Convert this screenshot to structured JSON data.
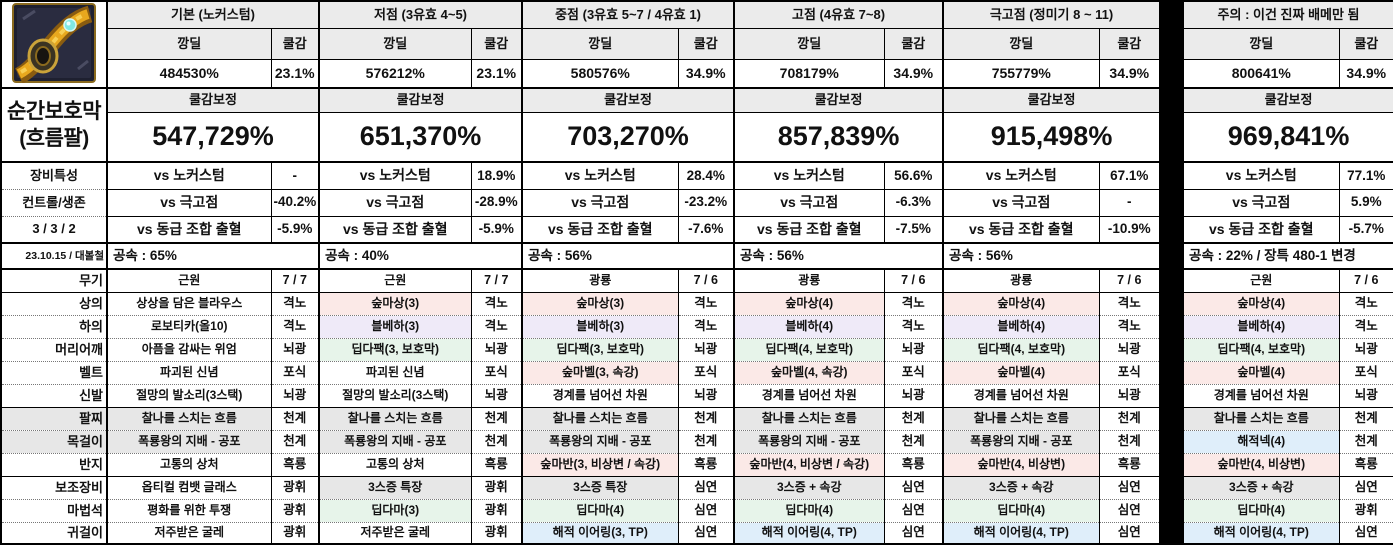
{
  "labels": {
    "damage": "깡딜",
    "cooldown": "쿨감",
    "corrected": "쿨감보정"
  },
  "left": {
    "icon": "gold-bracelet-item-icon",
    "title1": "순간보호막",
    "title2": "(흐름팔)",
    "stat_labels": [
      "장비특성",
      "컨트롤/생존",
      "3 / 3 / 2",
      "23.10.15 / 대볼철"
    ],
    "equipment": [
      {
        "label": "무기"
      },
      {
        "label": "상의"
      },
      {
        "label": "하의"
      },
      {
        "label": "머리어깨"
      },
      {
        "label": "벨트"
      },
      {
        "label": "신발"
      },
      {
        "label": "팔찌",
        "bg": "gray"
      },
      {
        "label": "목걸이",
        "bg": "gray"
      },
      {
        "label": "반지"
      },
      {
        "label": "보조장비"
      },
      {
        "label": "마법석"
      },
      {
        "label": "귀걸이"
      }
    ]
  },
  "colors": {
    "gray": "#e7e7e7",
    "pink": "#fbe9e7",
    "purple": "#efeaf8",
    "green": "#e7f4ea",
    "blue": "#dfeefa",
    "header": "#ebebeb",
    "separator": "#000000"
  },
  "groups": [
    {
      "title": "기본 (노커스텀)",
      "damage": "484530%",
      "cooldown": "23.1%",
      "corrected": "547,729%",
      "vs_rows": [
        {
          "label": "vs 노커스텀",
          "value": "-"
        },
        {
          "label": "vs 극고점",
          "value": "-40.2%"
        },
        {
          "label": "vs 동급 조합 출혈",
          "value": "-5.9%"
        }
      ],
      "speed": "공속 : 65%",
      "equipment": [
        {
          "item": "근원",
          "type": "7 / 7"
        },
        {
          "item": "상상을 담은 블라우스",
          "type": "격노"
        },
        {
          "item": "로보티카(올10)",
          "type": "격노"
        },
        {
          "item": "아픔을 감싸는 위엄",
          "type": "뇌광"
        },
        {
          "item": "파괴된 신념",
          "type": "포식"
        },
        {
          "item": "절망의 발소리(3스택)",
          "type": "뇌광"
        },
        {
          "item": "찰나를 스치는 흐름",
          "type": "천계",
          "bg": "gray"
        },
        {
          "item": "폭룡왕의 지배 - 공포",
          "type": "천계",
          "bg": "gray"
        },
        {
          "item": "고통의 상처",
          "type": "흑룡"
        },
        {
          "item": "옵티컬 컴뱃 글래스",
          "type": "광휘"
        },
        {
          "item": "평화를 위한 투쟁",
          "type": "광휘"
        },
        {
          "item": "저주받은 굴레",
          "type": "광휘"
        }
      ]
    },
    {
      "title": "저점 (3유효 4~5)",
      "damage": "576212%",
      "cooldown": "23.1%",
      "corrected": "651,370%",
      "vs_rows": [
        {
          "label": "vs 노커스텀",
          "value": "18.9%"
        },
        {
          "label": "vs 극고점",
          "value": "-28.9%"
        },
        {
          "label": "vs 동급 조합 출혈",
          "value": "-5.9%"
        }
      ],
      "speed": "공속 : 40%",
      "equipment": [
        {
          "item": "근원",
          "type": "7 / 7"
        },
        {
          "item": "숲마상(3)",
          "type": "격노",
          "bg": "pink"
        },
        {
          "item": "블베하(3)",
          "type": "격노",
          "bg": "purple"
        },
        {
          "item": "딥다팩(3, 보호막)",
          "type": "뇌광",
          "bg": "green"
        },
        {
          "item": "파괴된 신념",
          "type": "포식"
        },
        {
          "item": "절망의 발소리(3스택)",
          "type": "뇌광"
        },
        {
          "item": "찰나를 스치는 흐름",
          "type": "천계",
          "bg": "gray"
        },
        {
          "item": "폭룡왕의 지배 - 공포",
          "type": "천계",
          "bg": "gray"
        },
        {
          "item": "고통의 상처",
          "type": "흑룡"
        },
        {
          "item": "3스증 특장",
          "type": "광휘",
          "bg": "gray"
        },
        {
          "item": "딥다마(3)",
          "type": "광휘",
          "bg": "green"
        },
        {
          "item": "저주받은 굴레",
          "type": "광휘"
        }
      ]
    },
    {
      "title": "중점 (3유효 5~7 / 4유효 1)",
      "damage": "580576%",
      "cooldown": "34.9%",
      "corrected": "703,270%",
      "vs_rows": [
        {
          "label": "vs 노커스텀",
          "value": "28.4%"
        },
        {
          "label": "vs 극고점",
          "value": "-23.2%"
        },
        {
          "label": "vs 동급 조합 출혈",
          "value": "-7.6%"
        }
      ],
      "speed": "공속 : 56%",
      "equipment": [
        {
          "item": "광룡",
          "type": "7 / 6"
        },
        {
          "item": "숲마상(3)",
          "type": "격노",
          "bg": "pink"
        },
        {
          "item": "블베하(3)",
          "type": "격노",
          "bg": "purple"
        },
        {
          "item": "딥다팩(3, 보호막)",
          "type": "뇌광",
          "bg": "green"
        },
        {
          "item": "숲마벨(3, 속강)",
          "type": "포식",
          "bg": "pink"
        },
        {
          "item": "경계를 넘어선 차원",
          "type": "뇌광"
        },
        {
          "item": "찰나를 스치는 흐름",
          "type": "천계",
          "bg": "gray"
        },
        {
          "item": "폭룡왕의 지배 - 공포",
          "type": "천계",
          "bg": "gray"
        },
        {
          "item": "숲마반(3, 비상변 / 속강)",
          "type": "흑룡",
          "bg": "pink"
        },
        {
          "item": "3스증 특장",
          "type": "심연",
          "bg": "gray"
        },
        {
          "item": "딥다마(4)",
          "type": "심연",
          "bg": "green"
        },
        {
          "item": "해적 이어링(3, TP)",
          "type": "심연",
          "bg": "blue"
        }
      ]
    },
    {
      "title": "고점 (4유효 7~8)",
      "damage": "708179%",
      "cooldown": "34.9%",
      "corrected": "857,839%",
      "vs_rows": [
        {
          "label": "vs 노커스텀",
          "value": "56.6%"
        },
        {
          "label": "vs 극고점",
          "value": "-6.3%"
        },
        {
          "label": "vs 동급 조합 출혈",
          "value": "-7.5%"
        }
      ],
      "speed": "공속 : 56%",
      "equipment": [
        {
          "item": "광룡",
          "type": "7 / 6"
        },
        {
          "item": "숲마상(4)",
          "type": "격노",
          "bg": "pink"
        },
        {
          "item": "블베하(4)",
          "type": "격노",
          "bg": "purple"
        },
        {
          "item": "딥다팩(4, 보호막)",
          "type": "뇌광",
          "bg": "green"
        },
        {
          "item": "숲마벨(4, 속강)",
          "type": "포식",
          "bg": "pink"
        },
        {
          "item": "경계를 넘어선 차원",
          "type": "뇌광"
        },
        {
          "item": "찰나를 스치는 흐름",
          "type": "천계",
          "bg": "gray"
        },
        {
          "item": "폭룡왕의 지배 - 공포",
          "type": "천계",
          "bg": "gray"
        },
        {
          "item": "숲마반(4, 비상변 / 속강)",
          "type": "흑룡",
          "bg": "pink"
        },
        {
          "item": "3스증 + 속강",
          "type": "심연",
          "bg": "gray"
        },
        {
          "item": "딥다마(4)",
          "type": "심연",
          "bg": "green"
        },
        {
          "item": "해적 이어링(4, TP)",
          "type": "심연",
          "bg": "blue"
        }
      ]
    },
    {
      "title": "극고점 (정미기 8 ~ 11)",
      "damage": "755779%",
      "cooldown": "34.9%",
      "corrected": "915,498%",
      "vs_rows": [
        {
          "label": "vs 노커스텀",
          "value": "67.1%"
        },
        {
          "label": "vs 극고점",
          "value": "-"
        },
        {
          "label": "vs 동급 조합 출혈",
          "value": "-10.9%"
        }
      ],
      "speed": "공속 : 56%",
      "equipment": [
        {
          "item": "광룡",
          "type": "7 / 6"
        },
        {
          "item": "숲마상(4)",
          "type": "격노",
          "bg": "pink"
        },
        {
          "item": "블베하(4)",
          "type": "격노",
          "bg": "purple"
        },
        {
          "item": "딥다팩(4, 보호막)",
          "type": "뇌광",
          "bg": "green"
        },
        {
          "item": "숲마벨(4)",
          "type": "포식",
          "bg": "pink"
        },
        {
          "item": "경계를 넘어선 차원",
          "type": "뇌광"
        },
        {
          "item": "찰나를 스치는 흐름",
          "type": "천계",
          "bg": "gray"
        },
        {
          "item": "폭룡왕의 지배 - 공포",
          "type": "천계",
          "bg": "gray"
        },
        {
          "item": "숲마반(4, 비상변)",
          "type": "흑룡",
          "bg": "pink"
        },
        {
          "item": "3스증 + 속강",
          "type": "심연",
          "bg": "gray"
        },
        {
          "item": "딥다마(4)",
          "type": "심연",
          "bg": "green"
        },
        {
          "item": "해적 이어링(4, TP)",
          "type": "심연",
          "bg": "blue"
        }
      ]
    },
    {
      "title": "주의 : 이건 진짜 배메만 됨",
      "damage": "800641%",
      "cooldown": "34.9%",
      "corrected": "969,841%",
      "vs_rows": [
        {
          "label": "vs 노커스텀",
          "value": "77.1%"
        },
        {
          "label": "vs 극고점",
          "value": "5.9%"
        },
        {
          "label": "vs 동급 조합 출혈",
          "value": "-5.7%"
        }
      ],
      "speed": "공속 : 22% / 장특 480-1 변경",
      "equipment": [
        {
          "item": "근원",
          "type": "7 / 6"
        },
        {
          "item": "숲마상(4)",
          "type": "격노",
          "bg": "pink"
        },
        {
          "item": "블베하(4)",
          "type": "격노",
          "bg": "purple"
        },
        {
          "item": "딥다팩(4, 보호막)",
          "type": "뇌광",
          "bg": "green"
        },
        {
          "item": "숲마벨(4)",
          "type": "포식",
          "bg": "pink"
        },
        {
          "item": "경계를 넘어선 차원",
          "type": "뇌광"
        },
        {
          "item": "찰나를 스치는 흐름",
          "type": "천계",
          "bg": "gray"
        },
        {
          "item": "해적넥(4)",
          "type": "천계",
          "bg": "blue"
        },
        {
          "item": "숲마반(4, 비상변)",
          "type": "흑룡",
          "bg": "pink"
        },
        {
          "item": "3스증 + 속강",
          "type": "심연",
          "bg": "gray"
        },
        {
          "item": "딥다마(4)",
          "type": "광휘",
          "bg": "green"
        },
        {
          "item": "해적 이어링(4, TP)",
          "type": "심연",
          "bg": "blue"
        }
      ]
    }
  ]
}
